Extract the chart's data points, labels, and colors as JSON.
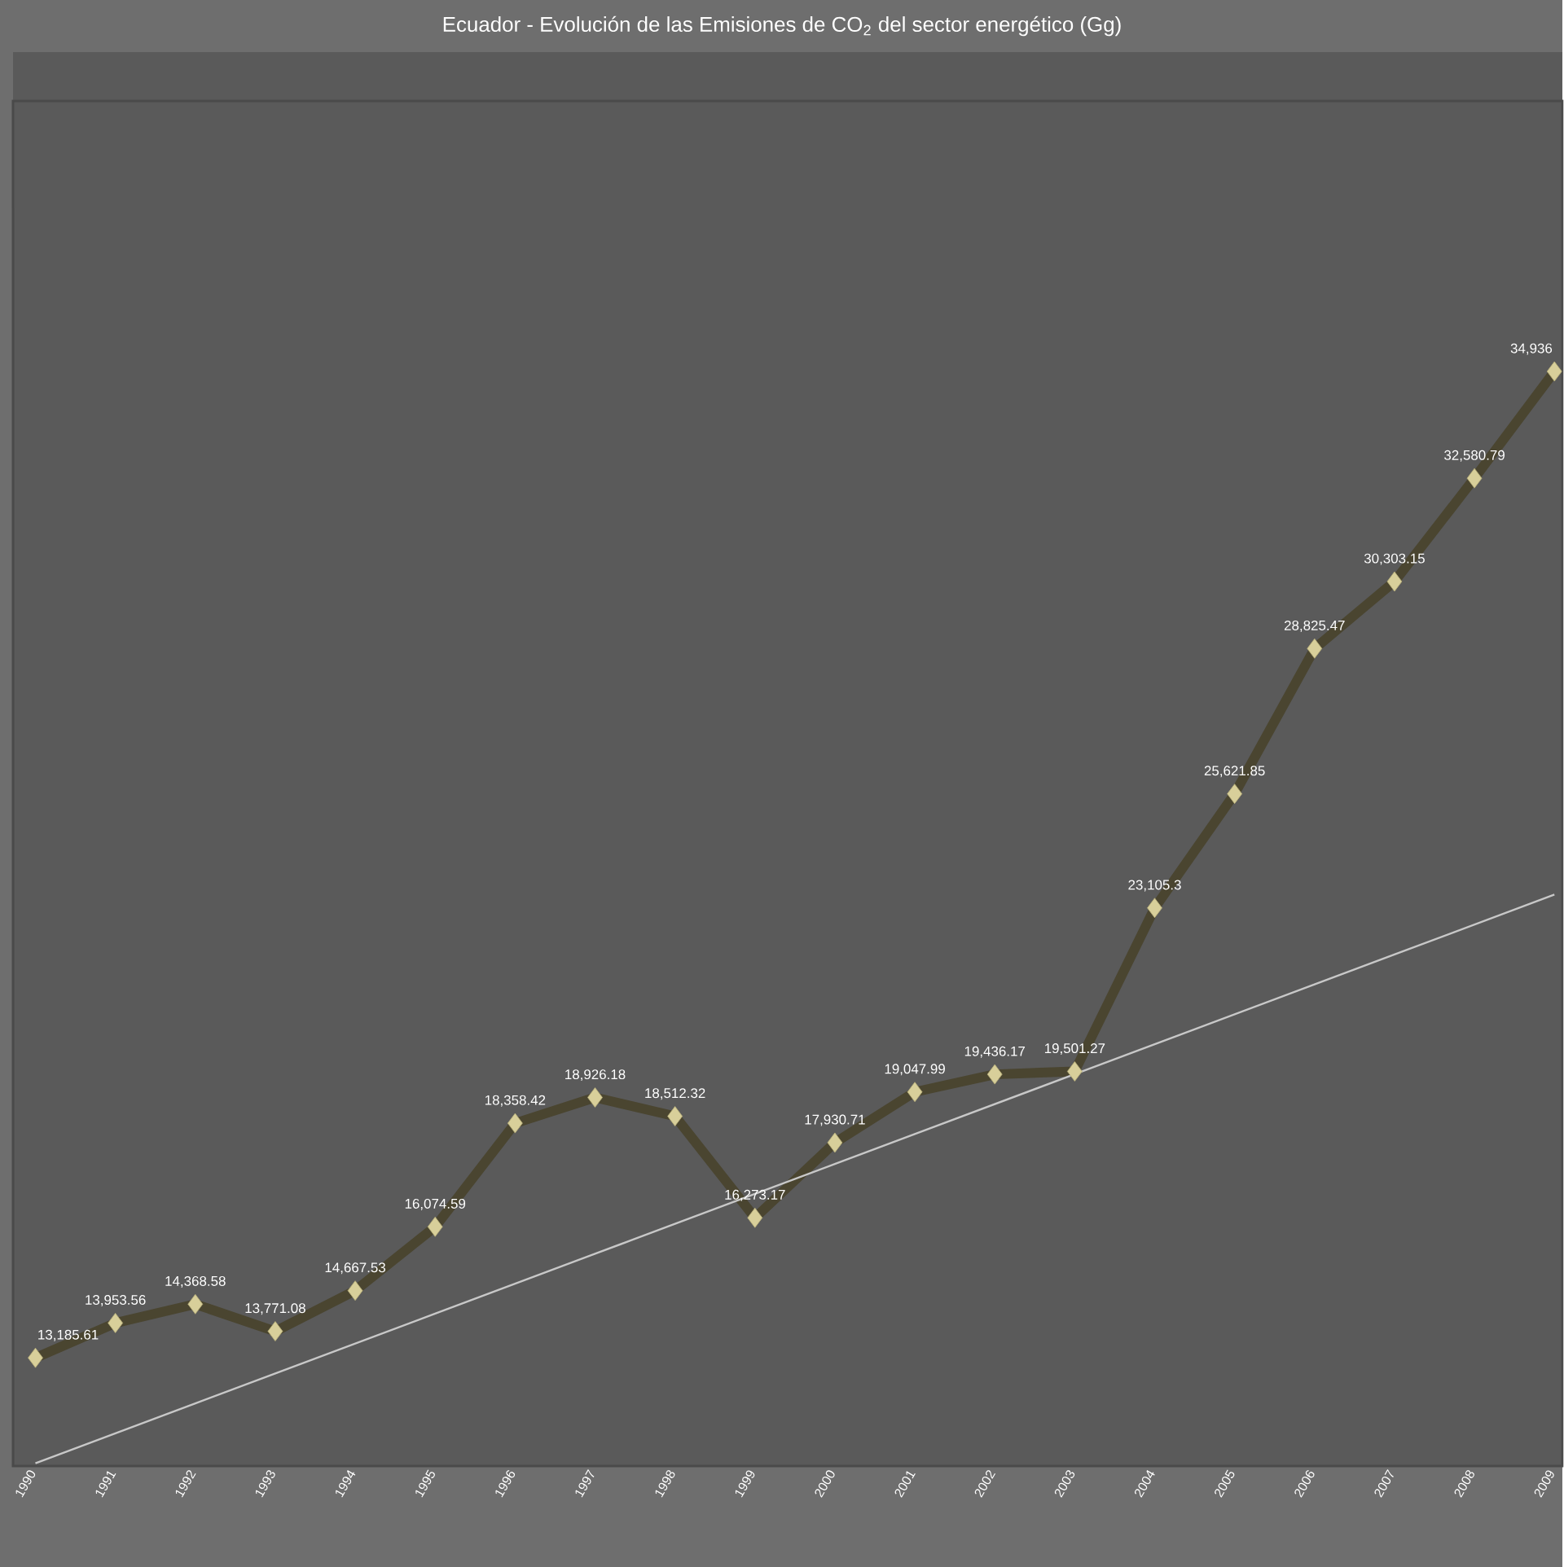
{
  "chart_data": {
    "type": "line",
    "title": "Ecuador - Evolución de las Emisiones de CO$_{2}$ del sector energético (Gg)",
    "categories": [
      "1990",
      "1991",
      "1992",
      "1993",
      "1994",
      "1995",
      "1996",
      "1997",
      "1998",
      "1999",
      "2000",
      "2001",
      "2002",
      "2003",
      "2004",
      "2005",
      "2006",
      "2007",
      "2008",
      "2009"
    ],
    "series": [
      {
        "color": "#4a4530",
        "values": [
          13185.61,
          13953.56,
          14368.58,
          13771.08,
          14667.53,
          16074.59,
          18358.42,
          18926.18,
          18512.32,
          16273.17,
          17930.71,
          19047.99,
          19436.17,
          19501.27,
          23105.3,
          25621.85,
          28825.47,
          30303.15,
          32580.79,
          34936
        ],
        "value_labels": [
          "13,185.61",
          "13,953.56",
          "14,368.58",
          "13,771.08",
          "14,667.53",
          "16,074.59",
          "18,358.42",
          "18,926.18",
          "18,512.32",
          "16,273.17",
          "17,930.71",
          "19,047.99",
          "19,436.17",
          "19,501.27",
          "23,105.3",
          "25,621.85",
          "28,825.47",
          "30,303.15",
          "32,580.79",
          "34,936"
        ]
      },
      {
        "type": "line",
        "color": "#c8c8c8",
        "marker": "none",
        "values": [
          10860,
          11520,
          12180,
          12840,
          13500,
          14160,
          14820,
          15480,
          16140,
          16800,
          17460,
          18120,
          18780,
          19440,
          20100,
          20760,
          21420,
          22080,
          22740,
          23400
        ]
      }
    ],
    "ylim": [
      10800,
      40900
    ],
    "tick_labels": "x",
    "marker": "diamond",
    "line_style": "solid"
  }
}
